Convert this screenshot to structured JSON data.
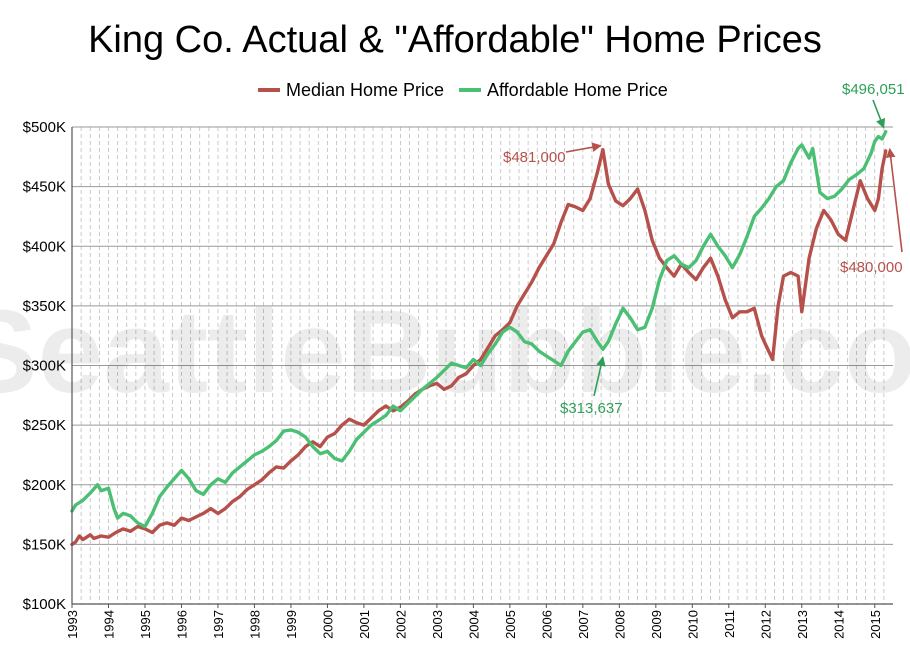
{
  "chart_data": {
    "type": "line",
    "title": "King Co. Actual & \"Affordable\" Home Prices",
    "watermark": "SeattleBubble.com",
    "ylabel": "",
    "xlabel": "",
    "ylim": [
      100000,
      500000
    ],
    "xlim": [
      1993.0,
      2015.5
    ],
    "y_ticks": [
      {
        "value": 100000,
        "label": "$100K"
      },
      {
        "value": 150000,
        "label": "$150K"
      },
      {
        "value": 200000,
        "label": "$200K"
      },
      {
        "value": 250000,
        "label": "$250K"
      },
      {
        "value": 300000,
        "label": "$300K"
      },
      {
        "value": 350000,
        "label": "$350K"
      },
      {
        "value": 400000,
        "label": "$400K"
      },
      {
        "value": 450000,
        "label": "$450K"
      },
      {
        "value": 500000,
        "label": "$500K"
      }
    ],
    "x_ticks": [
      {
        "value": 1993,
        "label": "1993"
      },
      {
        "value": 1994,
        "label": "1994"
      },
      {
        "value": 1995,
        "label": "1995"
      },
      {
        "value": 1996,
        "label": "1996"
      },
      {
        "value": 1997,
        "label": "1997"
      },
      {
        "value": 1998,
        "label": "1998"
      },
      {
        "value": 1999,
        "label": "1999"
      },
      {
        "value": 2000,
        "label": "2000"
      },
      {
        "value": 2001,
        "label": "2001"
      },
      {
        "value": 2002,
        "label": "2002"
      },
      {
        "value": 2003,
        "label": "2003"
      },
      {
        "value": 2004,
        "label": "2004"
      },
      {
        "value": 2005,
        "label": "2005"
      },
      {
        "value": 2006,
        "label": "2006"
      },
      {
        "value": 2007,
        "label": "2007"
      },
      {
        "value": 2008,
        "label": "2008"
      },
      {
        "value": 2009,
        "label": "2009"
      },
      {
        "value": 2010,
        "label": "2010"
      },
      {
        "value": 2011,
        "label": "2011"
      },
      {
        "value": 2012,
        "label": "2012"
      },
      {
        "value": 2013,
        "label": "2013"
      },
      {
        "value": 2014,
        "label": "2014"
      },
      {
        "value": 2015,
        "label": "2015"
      }
    ],
    "grid": {
      "horizontal": true,
      "vertical_dashed": true,
      "vertical_interval_years": 0.25
    },
    "legend_position": "top-center",
    "series": [
      {
        "name": "Median Home Price",
        "color": "#b5504b",
        "points": [
          [
            1993.0,
            150000
          ],
          [
            1993.1,
            152000
          ],
          [
            1993.2,
            157000
          ],
          [
            1993.3,
            154000
          ],
          [
            1993.5,
            158000
          ],
          [
            1993.6,
            155000
          ],
          [
            1993.8,
            157000
          ],
          [
            1994.0,
            156000
          ],
          [
            1994.2,
            160000
          ],
          [
            1994.4,
            163000
          ],
          [
            1994.6,
            161000
          ],
          [
            1994.8,
            165000
          ],
          [
            1995.0,
            163000
          ],
          [
            1995.2,
            160000
          ],
          [
            1995.4,
            166000
          ],
          [
            1995.6,
            168000
          ],
          [
            1995.8,
            166000
          ],
          [
            1996.0,
            172000
          ],
          [
            1996.2,
            170000
          ],
          [
            1996.4,
            173000
          ],
          [
            1996.6,
            176000
          ],
          [
            1996.8,
            180000
          ],
          [
            1997.0,
            176000
          ],
          [
            1997.2,
            180000
          ],
          [
            1997.4,
            186000
          ],
          [
            1997.6,
            190000
          ],
          [
            1997.8,
            196000
          ],
          [
            1998.0,
            200000
          ],
          [
            1998.2,
            204000
          ],
          [
            1998.4,
            210000
          ],
          [
            1998.6,
            215000
          ],
          [
            1998.8,
            214000
          ],
          [
            1999.0,
            220000
          ],
          [
            1999.2,
            225000
          ],
          [
            1999.4,
            232000
          ],
          [
            1999.6,
            236000
          ],
          [
            1999.8,
            232000
          ],
          [
            2000.0,
            240000
          ],
          [
            2000.2,
            243000
          ],
          [
            2000.4,
            250000
          ],
          [
            2000.6,
            255000
          ],
          [
            2000.8,
            252000
          ],
          [
            2001.0,
            250000
          ],
          [
            2001.2,
            256000
          ],
          [
            2001.4,
            262000
          ],
          [
            2001.6,
            266000
          ],
          [
            2001.8,
            262000
          ],
          [
            2002.0,
            265000
          ],
          [
            2002.2,
            270000
          ],
          [
            2002.4,
            276000
          ],
          [
            2002.6,
            280000
          ],
          [
            2002.8,
            283000
          ],
          [
            2003.0,
            285000
          ],
          [
            2003.2,
            280000
          ],
          [
            2003.4,
            283000
          ],
          [
            2003.6,
            290000
          ],
          [
            2003.8,
            293000
          ],
          [
            2004.0,
            300000
          ],
          [
            2004.2,
            305000
          ],
          [
            2004.4,
            315000
          ],
          [
            2004.6,
            325000
          ],
          [
            2004.8,
            330000
          ],
          [
            2005.0,
            336000
          ],
          [
            2005.2,
            350000
          ],
          [
            2005.4,
            360000
          ],
          [
            2005.6,
            370000
          ],
          [
            2005.8,
            382000
          ],
          [
            2006.0,
            392000
          ],
          [
            2006.2,
            402000
          ],
          [
            2006.4,
            420000
          ],
          [
            2006.6,
            435000
          ],
          [
            2006.8,
            433000
          ],
          [
            2007.0,
            430000
          ],
          [
            2007.2,
            440000
          ],
          [
            2007.4,
            462000
          ],
          [
            2007.55,
            481000
          ],
          [
            2007.7,
            452000
          ],
          [
            2007.9,
            438000
          ],
          [
            2008.1,
            434000
          ],
          [
            2008.3,
            440000
          ],
          [
            2008.5,
            448000
          ],
          [
            2008.7,
            430000
          ],
          [
            2008.9,
            405000
          ],
          [
            2009.1,
            390000
          ],
          [
            2009.3,
            382000
          ],
          [
            2009.5,
            375000
          ],
          [
            2009.7,
            385000
          ],
          [
            2009.9,
            378000
          ],
          [
            2010.1,
            372000
          ],
          [
            2010.3,
            382000
          ],
          [
            2010.5,
            390000
          ],
          [
            2010.7,
            375000
          ],
          [
            2010.9,
            355000
          ],
          [
            2011.1,
            340000
          ],
          [
            2011.3,
            345000
          ],
          [
            2011.5,
            345000
          ],
          [
            2011.7,
            348000
          ],
          [
            2011.9,
            325000
          ],
          [
            2012.0,
            318000
          ],
          [
            2012.2,
            305000
          ],
          [
            2012.35,
            350000
          ],
          [
            2012.5,
            375000
          ],
          [
            2012.7,
            378000
          ],
          [
            2012.9,
            375000
          ],
          [
            2013.0,
            345000
          ],
          [
            2013.2,
            390000
          ],
          [
            2013.4,
            415000
          ],
          [
            2013.6,
            430000
          ],
          [
            2013.8,
            422000
          ],
          [
            2014.0,
            410000
          ],
          [
            2014.2,
            405000
          ],
          [
            2014.4,
            430000
          ],
          [
            2014.6,
            455000
          ],
          [
            2014.8,
            440000
          ],
          [
            2015.0,
            430000
          ],
          [
            2015.1,
            440000
          ],
          [
            2015.2,
            465000
          ],
          [
            2015.3,
            480000
          ]
        ]
      },
      {
        "name": "Affordable Home Price",
        "color": "#4bbf73",
        "points": [
          [
            1993.0,
            178000
          ],
          [
            1993.1,
            183000
          ],
          [
            1993.3,
            187000
          ],
          [
            1993.5,
            193000
          ],
          [
            1993.7,
            200000
          ],
          [
            1993.8,
            195000
          ],
          [
            1994.0,
            197000
          ],
          [
            1994.15,
            180000
          ],
          [
            1994.25,
            172000
          ],
          [
            1994.4,
            176000
          ],
          [
            1994.6,
            174000
          ],
          [
            1994.8,
            168000
          ],
          [
            1995.0,
            165000
          ],
          [
            1995.2,
            176000
          ],
          [
            1995.4,
            190000
          ],
          [
            1995.6,
            198000
          ],
          [
            1995.8,
            205000
          ],
          [
            1996.0,
            212000
          ],
          [
            1996.2,
            205000
          ],
          [
            1996.4,
            195000
          ],
          [
            1996.6,
            192000
          ],
          [
            1996.8,
            200000
          ],
          [
            1997.0,
            205000
          ],
          [
            1997.2,
            202000
          ],
          [
            1997.4,
            210000
          ],
          [
            1997.6,
            215000
          ],
          [
            1997.8,
            220000
          ],
          [
            1998.0,
            225000
          ],
          [
            1998.2,
            228000
          ],
          [
            1998.4,
            232000
          ],
          [
            1998.6,
            237000
          ],
          [
            1998.8,
            245000
          ],
          [
            1999.0,
            246000
          ],
          [
            1999.2,
            244000
          ],
          [
            1999.4,
            240000
          ],
          [
            1999.6,
            232000
          ],
          [
            1999.8,
            226000
          ],
          [
            2000.0,
            228000
          ],
          [
            2000.2,
            222000
          ],
          [
            2000.4,
            220000
          ],
          [
            2000.6,
            228000
          ],
          [
            2000.8,
            238000
          ],
          [
            2001.0,
            244000
          ],
          [
            2001.2,
            250000
          ],
          [
            2001.4,
            254000
          ],
          [
            2001.6,
            258000
          ],
          [
            2001.8,
            266000
          ],
          [
            2002.0,
            262000
          ],
          [
            2002.2,
            268000
          ],
          [
            2002.4,
            274000
          ],
          [
            2002.6,
            280000
          ],
          [
            2002.8,
            285000
          ],
          [
            2003.0,
            290000
          ],
          [
            2003.2,
            296000
          ],
          [
            2003.4,
            302000
          ],
          [
            2003.6,
            300000
          ],
          [
            2003.8,
            298000
          ],
          [
            2004.0,
            305000
          ],
          [
            2004.2,
            300000
          ],
          [
            2004.4,
            310000
          ],
          [
            2004.6,
            318000
          ],
          [
            2004.8,
            328000
          ],
          [
            2005.0,
            332000
          ],
          [
            2005.2,
            328000
          ],
          [
            2005.4,
            320000
          ],
          [
            2005.6,
            318000
          ],
          [
            2005.8,
            312000
          ],
          [
            2006.0,
            308000
          ],
          [
            2006.2,
            304000
          ],
          [
            2006.4,
            300000
          ],
          [
            2006.6,
            312000
          ],
          [
            2006.8,
            320000
          ],
          [
            2007.0,
            328000
          ],
          [
            2007.2,
            330000
          ],
          [
            2007.4,
            320000
          ],
          [
            2007.55,
            313637
          ],
          [
            2007.7,
            320000
          ],
          [
            2007.9,
            335000
          ],
          [
            2008.1,
            348000
          ],
          [
            2008.3,
            340000
          ],
          [
            2008.5,
            330000
          ],
          [
            2008.7,
            332000
          ],
          [
            2008.9,
            348000
          ],
          [
            2009.1,
            372000
          ],
          [
            2009.3,
            388000
          ],
          [
            2009.5,
            392000
          ],
          [
            2009.7,
            385000
          ],
          [
            2009.9,
            382000
          ],
          [
            2010.1,
            388000
          ],
          [
            2010.3,
            400000
          ],
          [
            2010.5,
            410000
          ],
          [
            2010.7,
            400000
          ],
          [
            2010.9,
            392000
          ],
          [
            2011.1,
            382000
          ],
          [
            2011.3,
            393000
          ],
          [
            2011.5,
            408000
          ],
          [
            2011.7,
            425000
          ],
          [
            2011.9,
            432000
          ],
          [
            2012.1,
            440000
          ],
          [
            2012.3,
            450000
          ],
          [
            2012.5,
            455000
          ],
          [
            2012.7,
            470000
          ],
          [
            2012.9,
            482000
          ],
          [
            2013.0,
            485000
          ],
          [
            2013.2,
            474000
          ],
          [
            2013.3,
            482000
          ],
          [
            2013.5,
            445000
          ],
          [
            2013.7,
            440000
          ],
          [
            2013.9,
            442000
          ],
          [
            2014.1,
            448000
          ],
          [
            2014.3,
            456000
          ],
          [
            2014.5,
            460000
          ],
          [
            2014.7,
            465000
          ],
          [
            2014.9,
            478000
          ],
          [
            2015.0,
            488000
          ],
          [
            2015.1,
            492000
          ],
          [
            2015.2,
            490000
          ],
          [
            2015.3,
            496051
          ]
        ]
      }
    ],
    "annotations": [
      {
        "text": "$481,000",
        "color": "#b5504b",
        "series": 0,
        "point": [
          2007.55,
          481000
        ]
      },
      {
        "text": "$480,000",
        "color": "#b5504b",
        "series": 0,
        "point": [
          2015.3,
          480000
        ]
      },
      {
        "text": "$313,637",
        "color": "#2f9e57",
        "series": 1,
        "point": [
          2007.55,
          313637
        ]
      },
      {
        "text": "$496,051",
        "color": "#2f9e57",
        "series": 1,
        "point": [
          2015.3,
          496051
        ]
      }
    ]
  }
}
